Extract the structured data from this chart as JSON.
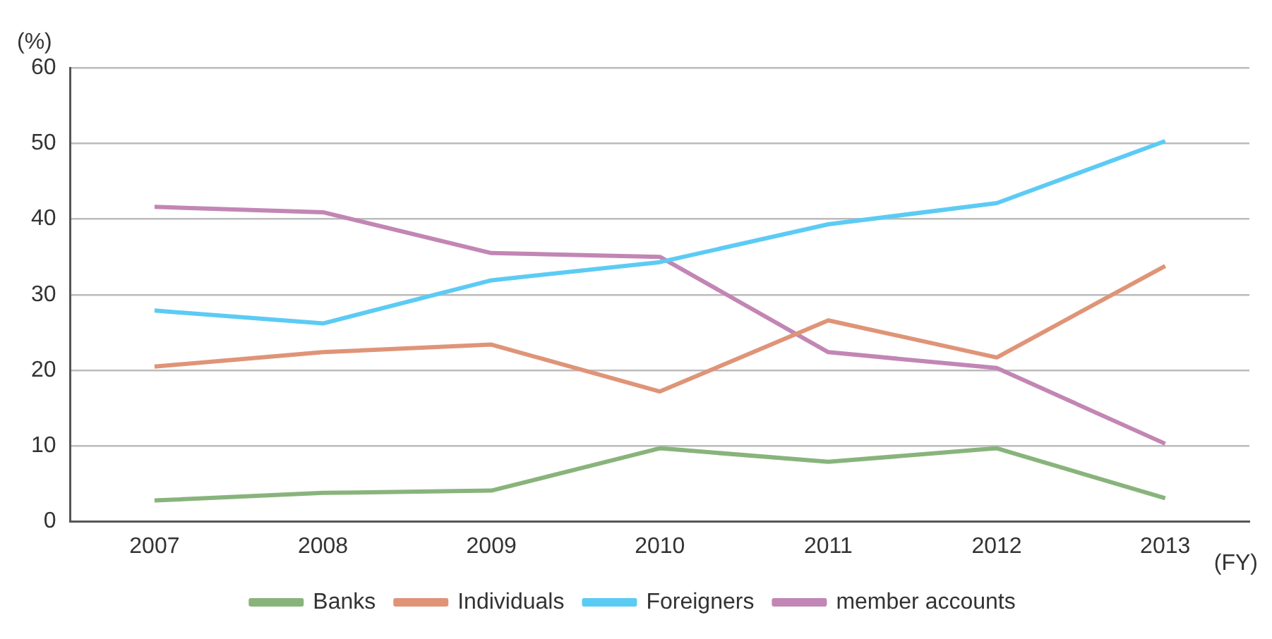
{
  "chart_data": {
    "type": "line",
    "xlabel": "(FY)",
    "ylabel": "(%)",
    "categories": [
      "2007",
      "2008",
      "2009",
      "2010",
      "2011",
      "2012",
      "2013"
    ],
    "series": [
      {
        "name": "Banks",
        "color": "#88b47c",
        "values": [
          2.8,
          3.8,
          4.1,
          9.7,
          7.9,
          9.7,
          3.1
        ]
      },
      {
        "name": "Individuals",
        "color": "#df9478",
        "values": [
          20.5,
          22.4,
          23.4,
          17.2,
          26.6,
          21.7,
          33.8
        ]
      },
      {
        "name": "Foreigners",
        "color": "#5ccbf4",
        "values": [
          27.9,
          26.2,
          31.9,
          34.3,
          39.3,
          42.1,
          50.3
        ]
      },
      {
        "name": "member accounts",
        "color": "#c286b4",
        "values": [
          41.6,
          40.9,
          35.5,
          35.0,
          22.4,
          20.3,
          10.3
        ]
      }
    ],
    "ylim": [
      0,
      60
    ],
    "yticks": [
      0,
      10,
      20,
      30,
      40,
      50,
      60
    ],
    "grid": "y",
    "legend": "bottom",
    "marker": "none",
    "line_style": "solid"
  }
}
